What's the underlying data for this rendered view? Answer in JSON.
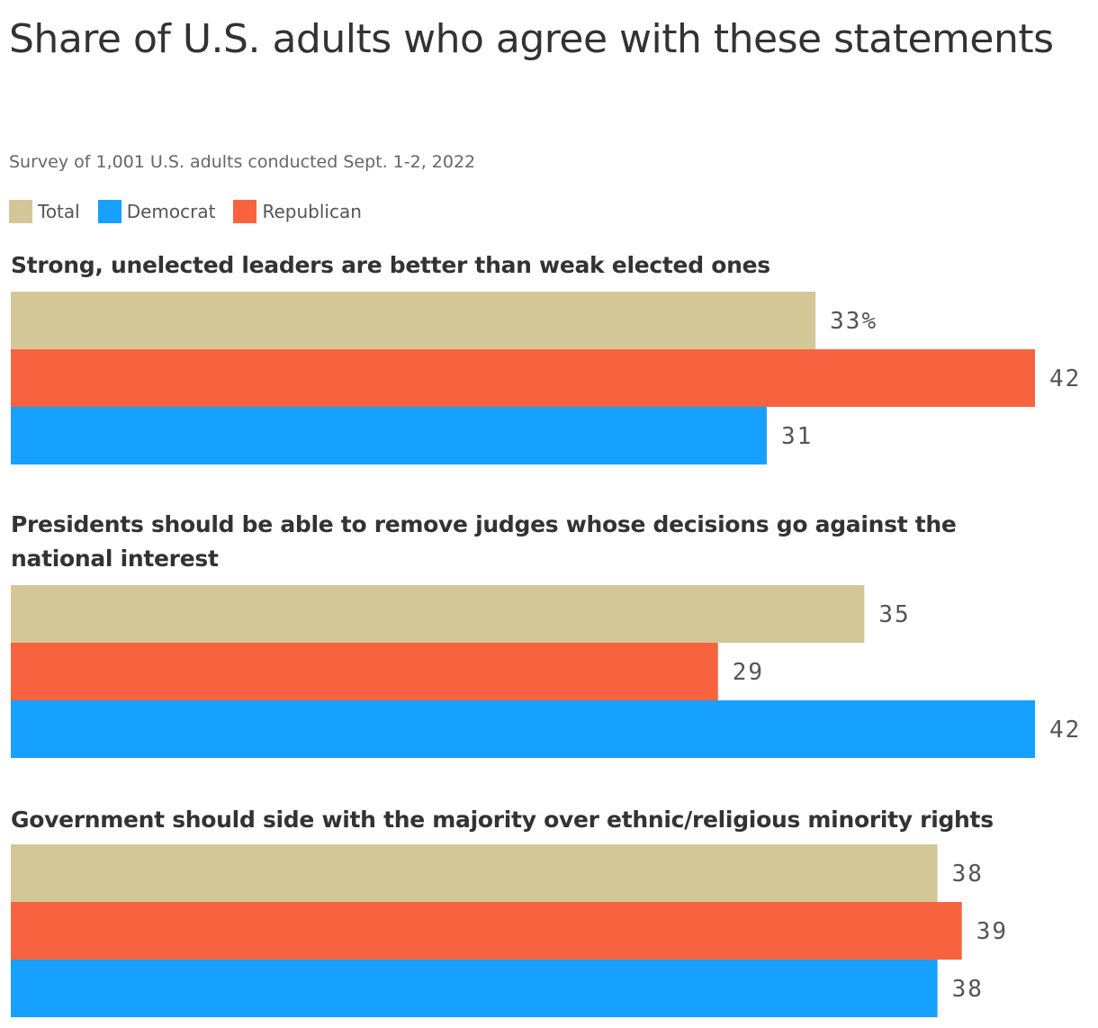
{
  "colors": {
    "Total": "#d3c797",
    "Democrat": "#16a0ff",
    "Republican": "#f7633f"
  },
  "chart_data": {
    "type": "bar",
    "orientation": "horizontal",
    "title": "Share of U.S. adults who agree with these statements",
    "subtitle": "Survey of 1,001 U.S. adults conducted Sept. 1-2, 2022",
    "legend": [
      "Total",
      "Democrat",
      "Republican"
    ],
    "legend_placement": "top-left",
    "grid": false,
    "xlim": [
      0,
      42
    ],
    "value_suffix_first": "%",
    "groups": [
      {
        "label": "Strong, unelected leaders are better than weak elected ones",
        "bars": [
          {
            "series": "Total",
            "value": 33,
            "label": "33%"
          },
          {
            "series": "Republican",
            "value": 42,
            "label": "42"
          },
          {
            "series": "Democrat",
            "value": 31,
            "label": "31"
          }
        ]
      },
      {
        "label": "Presidents should be able to remove judges whose decisions go against the national interest",
        "bars": [
          {
            "series": "Total",
            "value": 35,
            "label": "35"
          },
          {
            "series": "Republican",
            "value": 29,
            "label": "29"
          },
          {
            "series": "Democrat",
            "value": 42,
            "label": "42"
          }
        ]
      },
      {
        "label": "Government should side with the majority over ethnic/religious minority rights",
        "bars": [
          {
            "series": "Total",
            "value": 38,
            "label": "38"
          },
          {
            "series": "Republican",
            "value": 39,
            "label": "39"
          },
          {
            "series": "Democrat",
            "value": 38,
            "label": "38"
          }
        ]
      }
    ]
  }
}
